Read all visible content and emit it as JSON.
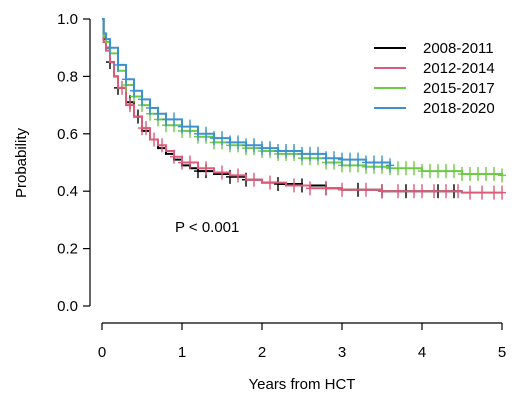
{
  "chart_data": {
    "type": "line",
    "xlabel": "Years from HCT",
    "ylabel": "Probability",
    "xlim": [
      0,
      5
    ],
    "ylim": [
      0,
      1
    ],
    "x_ticks": [
      "0",
      "1",
      "2",
      "3",
      "4",
      "5"
    ],
    "y_ticks": [
      "0.0",
      "0.2",
      "0.4",
      "0.6",
      "0.8",
      "1.0"
    ],
    "grid": false,
    "legend_position": "top-right",
    "annotation": "P < 0.001",
    "series": [
      {
        "name": "2008-2011",
        "color": "#000000",
        "points": [
          [
            0,
            1.0
          ],
          [
            0.02,
            0.93
          ],
          [
            0.05,
            0.9
          ],
          [
            0.1,
            0.85
          ],
          [
            0.15,
            0.8
          ],
          [
            0.2,
            0.76
          ],
          [
            0.3,
            0.71
          ],
          [
            0.4,
            0.66
          ],
          [
            0.5,
            0.61
          ],
          [
            0.6,
            0.58
          ],
          [
            0.7,
            0.55
          ],
          [
            0.8,
            0.53
          ],
          [
            0.9,
            0.51
          ],
          [
            1.0,
            0.49
          ],
          [
            1.1,
            0.48
          ],
          [
            1.2,
            0.47
          ],
          [
            1.4,
            0.46
          ],
          [
            1.6,
            0.45
          ],
          [
            1.8,
            0.44
          ],
          [
            2.0,
            0.43
          ],
          [
            2.2,
            0.425
          ],
          [
            2.5,
            0.42
          ],
          [
            2.8,
            0.41
          ],
          [
            3.0,
            0.405
          ],
          [
            3.2,
            0.405
          ],
          [
            3.5,
            0.4
          ],
          [
            4.0,
            0.4
          ],
          [
            4.2,
            0.4
          ],
          [
            4.5,
            0.4
          ]
        ],
        "censor_x": [
          0.1,
          0.2,
          0.35,
          0.45,
          1.2,
          1.3,
          1.6,
          1.8,
          2.2,
          2.5,
          2.8,
          3.2,
          3.5,
          3.8,
          4.2,
          4.4
        ]
      },
      {
        "name": "2012-2014",
        "color": "#DB5B79",
        "points": [
          [
            0,
            1.0
          ],
          [
            0.02,
            0.92
          ],
          [
            0.05,
            0.89
          ],
          [
            0.1,
            0.85
          ],
          [
            0.15,
            0.8
          ],
          [
            0.2,
            0.76
          ],
          [
            0.3,
            0.7
          ],
          [
            0.4,
            0.66
          ],
          [
            0.5,
            0.62
          ],
          [
            0.6,
            0.58
          ],
          [
            0.7,
            0.56
          ],
          [
            0.8,
            0.54
          ],
          [
            0.9,
            0.52
          ],
          [
            1.0,
            0.5
          ],
          [
            1.2,
            0.48
          ],
          [
            1.4,
            0.465
          ],
          [
            1.6,
            0.455
          ],
          [
            1.8,
            0.44
          ],
          [
            2.0,
            0.43
          ],
          [
            2.3,
            0.42
          ],
          [
            2.6,
            0.41
          ],
          [
            3.0,
            0.405
          ],
          [
            3.5,
            0.4
          ],
          [
            4.0,
            0.4
          ],
          [
            4.5,
            0.395
          ],
          [
            5.0,
            0.395
          ]
        ],
        "censor_x": [
          0.25,
          0.35,
          0.5,
          0.55,
          0.65,
          0.75,
          0.9,
          1.0,
          1.1,
          1.3,
          1.5,
          1.7,
          1.9,
          2.1,
          2.4,
          2.6,
          2.8,
          3.0,
          3.3,
          3.5,
          3.7,
          3.9,
          4.0,
          4.15,
          4.3,
          4.45,
          4.6,
          4.75,
          4.9,
          5.0
        ]
      },
      {
        "name": "2015-2017",
        "color": "#6CCB45",
        "points": [
          [
            0,
            1.0
          ],
          [
            0.02,
            0.94
          ],
          [
            0.05,
            0.92
          ],
          [
            0.1,
            0.88
          ],
          [
            0.2,
            0.82
          ],
          [
            0.3,
            0.77
          ],
          [
            0.4,
            0.73
          ],
          [
            0.5,
            0.7
          ],
          [
            0.6,
            0.67
          ],
          [
            0.7,
            0.65
          ],
          [
            0.8,
            0.63
          ],
          [
            1.0,
            0.61
          ],
          [
            1.2,
            0.59
          ],
          [
            1.4,
            0.57
          ],
          [
            1.6,
            0.56
          ],
          [
            1.8,
            0.55
          ],
          [
            2.0,
            0.54
          ],
          [
            2.2,
            0.53
          ],
          [
            2.5,
            0.515
          ],
          [
            2.8,
            0.5
          ],
          [
            3.0,
            0.49
          ],
          [
            3.3,
            0.485
          ],
          [
            3.6,
            0.48
          ],
          [
            4.0,
            0.47
          ],
          [
            4.5,
            0.46
          ],
          [
            5.0,
            0.455
          ]
        ],
        "censor_x": [
          0.3,
          0.4,
          0.5,
          0.6,
          0.7,
          0.8,
          0.9,
          1.0,
          1.1,
          1.2,
          1.3,
          1.4,
          1.5,
          1.6,
          1.7,
          1.8,
          1.9,
          2.0,
          2.1,
          2.2,
          2.3,
          2.4,
          2.5,
          2.6,
          2.7,
          2.8,
          2.9,
          3.0,
          3.1,
          3.2,
          3.3,
          3.4,
          3.5,
          3.6,
          3.7,
          3.8,
          3.9,
          4.0,
          4.1,
          4.2,
          4.3,
          4.4,
          4.5,
          4.6,
          4.7,
          4.8,
          4.9,
          5.0
        ]
      },
      {
        "name": "2018-2020",
        "color": "#3D91D1",
        "points": [
          [
            0,
            1.0
          ],
          [
            0.02,
            0.95
          ],
          [
            0.05,
            0.93
          ],
          [
            0.1,
            0.9
          ],
          [
            0.2,
            0.84
          ],
          [
            0.3,
            0.79
          ],
          [
            0.4,
            0.75
          ],
          [
            0.5,
            0.72
          ],
          [
            0.6,
            0.69
          ],
          [
            0.7,
            0.67
          ],
          [
            0.8,
            0.65
          ],
          [
            1.0,
            0.625
          ],
          [
            1.2,
            0.6
          ],
          [
            1.4,
            0.585
          ],
          [
            1.6,
            0.57
          ],
          [
            1.8,
            0.56
          ],
          [
            2.0,
            0.55
          ],
          [
            2.2,
            0.54
          ],
          [
            2.5,
            0.53
          ],
          [
            2.8,
            0.515
          ],
          [
            3.0,
            0.51
          ],
          [
            3.3,
            0.5
          ],
          [
            3.6,
            0.49
          ]
        ],
        "censor_x": [
          0.1,
          0.2,
          0.3,
          0.4,
          0.5,
          0.6,
          0.7,
          0.8,
          0.9,
          1.0,
          1.1,
          1.2,
          1.3,
          1.4,
          1.5,
          1.6,
          1.7,
          1.8,
          1.9,
          2.0,
          2.1,
          2.2,
          2.3,
          2.4,
          2.5,
          2.6,
          2.7,
          2.8,
          2.9,
          3.0,
          3.1,
          3.2,
          3.3,
          3.4,
          3.5,
          3.6
        ]
      }
    ]
  }
}
